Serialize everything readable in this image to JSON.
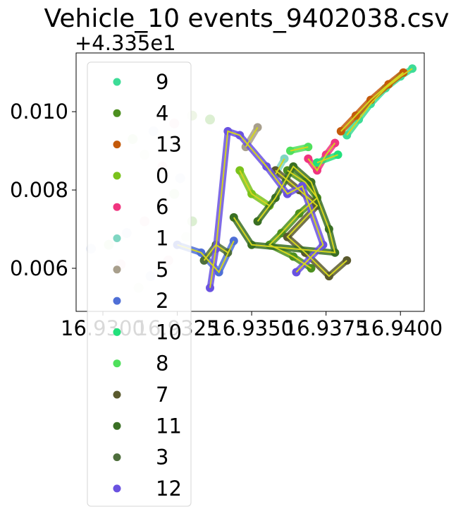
{
  "chart_data": {
    "type": "scatter",
    "title": "Vehicle_10 events_9402038.csv",
    "xlabel": "",
    "ylabel": "",
    "y_offset_text": "+4.335e1",
    "xlim": [
      16.9291,
      16.9408
    ],
    "ylim": [
      0.0049,
      0.0115
    ],
    "x_ticks": [
      16.93,
      16.9325,
      16.935,
      16.9375,
      16.94
    ],
    "x_tick_labels": [
      "16.9300",
      "16.9325",
      "16.9350",
      "16.9375",
      "16.9400"
    ],
    "y_ticks": [
      0.006,
      0.008,
      0.01
    ],
    "y_tick_labels": [
      "0.006",
      "0.008",
      "0.010"
    ],
    "grid": false,
    "legend_position": "upper-left (overflowing below axes)",
    "overlay_line_color": "#d4d61e",
    "series": [
      {
        "name": "9",
        "color": "#3ddc97",
        "points": [
          [
            16.9382,
            0.0094
          ],
          [
            16.9386,
            0.0098
          ],
          [
            16.939,
            0.0102
          ],
          [
            16.9395,
            0.0106
          ],
          [
            16.94,
            0.0109
          ],
          [
            16.9404,
            0.0111
          ]
        ]
      },
      {
        "name": "4",
        "color": "#4c8f1f",
        "points": [
          [
            16.9362,
            0.0085
          ],
          [
            16.9368,
            0.0082
          ],
          [
            16.9372,
            0.0078
          ],
          [
            16.9366,
            0.0074
          ],
          [
            16.936,
            0.0069
          ],
          [
            16.9356,
            0.0066
          ],
          [
            16.9364,
            0.0063
          ],
          [
            16.937,
            0.006
          ]
        ]
      },
      {
        "name": "13",
        "color": "#c45a0a",
        "points": [
          [
            16.938,
            0.0095
          ],
          [
            16.9385,
            0.0099
          ],
          [
            16.939,
            0.0103
          ],
          [
            16.9396,
            0.0107
          ],
          [
            16.9401,
            0.011
          ]
        ]
      },
      {
        "name": "0",
        "color": "#7ac21c",
        "points": [
          [
            16.9346,
            0.0085
          ],
          [
            16.935,
            0.0079
          ],
          [
            16.9356,
            0.0076
          ]
        ]
      },
      {
        "name": "6",
        "color": "#f0357f",
        "points": [
          [
            16.9369,
            0.0088
          ],
          [
            16.9372,
            0.0085
          ],
          [
            16.9375,
            0.0089
          ],
          [
            16.9378,
            0.0092
          ]
        ]
      },
      {
        "name": "1",
        "color": "#7fd6c2",
        "points": [
          [
            16.9361,
            0.0088
          ],
          [
            16.9358,
            0.0084
          ]
        ]
      },
      {
        "name": "5",
        "color": "#a89f8c",
        "points": [
          [
            16.9348,
            0.0091
          ],
          [
            16.9352,
            0.0096
          ]
        ]
      },
      {
        "name": "2",
        "color": "#4f6fd6",
        "points": [
          [
            16.9325,
            0.0066
          ],
          [
            16.9333,
            0.0064
          ],
          [
            16.9339,
            0.0059
          ],
          [
            16.9344,
            0.0067
          ]
        ]
      },
      {
        "name": "10",
        "color": "#22e07b",
        "points": [
          [
            16.9372,
            0.0087
          ],
          [
            16.9379,
            0.0089
          ]
        ]
      },
      {
        "name": "8",
        "color": "#4fe05c",
        "points": [
          [
            16.9363,
            0.009
          ],
          [
            16.9369,
            0.0091
          ]
        ]
      },
      {
        "name": "7",
        "color": "#5a5a2e",
        "points": [
          [
            16.9358,
            0.0085
          ],
          [
            16.9366,
            0.008
          ],
          [
            16.9372,
            0.0076
          ],
          [
            16.9362,
            0.0068
          ],
          [
            16.9368,
            0.0064
          ],
          [
            16.9376,
            0.0058
          ],
          [
            16.9382,
            0.0062
          ]
        ]
      },
      {
        "name": "11",
        "color": "#3a6f24",
        "points": [
          [
            16.9352,
            0.0072
          ],
          [
            16.9358,
            0.0078
          ],
          [
            16.9364,
            0.0086
          ],
          [
            16.937,
            0.0082
          ],
          [
            16.9376,
            0.007
          ],
          [
            16.9378,
            0.0064
          ],
          [
            16.935,
            0.0066
          ],
          [
            16.9344,
            0.0073
          ]
        ]
      },
      {
        "name": "3",
        "color": "#4e6e3c",
        "points": [
          [
            16.9334,
            0.0062
          ],
          [
            16.9338,
            0.0066
          ],
          [
            16.9342,
            0.0064
          ]
        ]
      },
      {
        "name": "12",
        "color": "#6a52e0",
        "points": [
          [
            16.9336,
            0.0055
          ],
          [
            16.9338,
            0.0065
          ],
          [
            16.9342,
            0.0095
          ],
          [
            16.9346,
            0.0094
          ],
          [
            16.9355,
            0.0086
          ],
          [
            16.9362,
            0.0079
          ],
          [
            16.9367,
            0.0081
          ],
          [
            16.9374,
            0.0066
          ],
          [
            16.9365,
            0.0059
          ]
        ]
      }
    ],
    "pale_background_series": {
      "colors": [
        "#dcefd2",
        "#e4e9f7",
        "#f7dbe3",
        "#eef5e6"
      ],
      "points": [
        [
          16.9302,
          0.0066
        ],
        [
          16.9308,
          0.0069
        ],
        [
          16.9314,
          0.0072
        ],
        [
          16.932,
          0.0075
        ],
        [
          16.9324,
          0.0079
        ],
        [
          16.9326,
          0.0083
        ],
        [
          16.932,
          0.0086
        ],
        [
          16.9314,
          0.0089
        ],
        [
          16.931,
          0.0093
        ],
        [
          16.9317,
          0.0095
        ],
        [
          16.9324,
          0.0097
        ],
        [
          16.933,
          0.0099
        ],
        [
          16.9336,
          0.0098
        ],
        [
          16.9316,
          0.0058
        ],
        [
          16.9322,
          0.0062
        ],
        [
          16.9328,
          0.0068
        ],
        [
          16.933,
          0.0072
        ],
        [
          16.9296,
          0.0065
        ],
        [
          16.9306,
          0.0061
        ],
        [
          16.9312,
          0.0055
        ]
      ]
    }
  }
}
